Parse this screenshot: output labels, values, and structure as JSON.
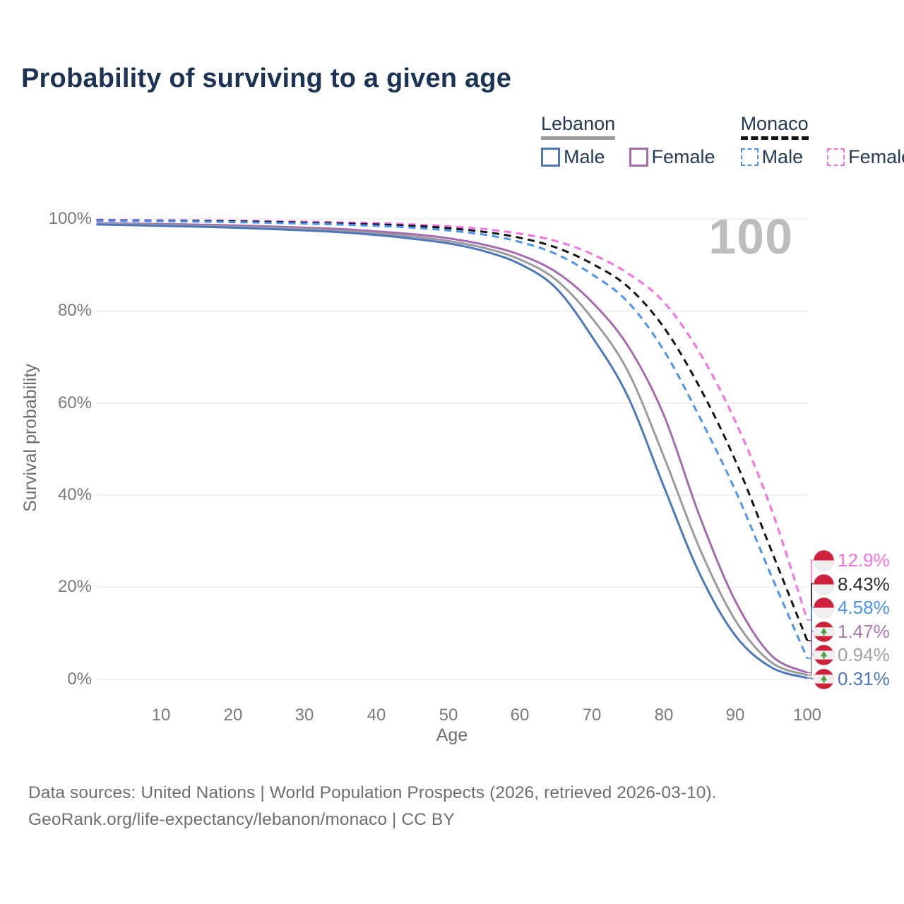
{
  "title": "Probability of surviving to a given age",
  "watermark": "100",
  "legend": {
    "groups": [
      {
        "label": "Lebanon",
        "line_style": "solid",
        "line_color": "#9b9b9b",
        "items": [
          {
            "label": "Male",
            "color": "#4a77bd",
            "dash": false
          },
          {
            "label": "Female",
            "color": "#a76ab0",
            "dash": false
          }
        ]
      },
      {
        "label": "Monaco",
        "line_style": "dashed",
        "line_color": "#141414",
        "items": [
          {
            "label": "Male",
            "color": "#4b93f5",
            "dash": true
          },
          {
            "label": "Female",
            "color": "#fa6fe3",
            "dash": true
          }
        ]
      }
    ]
  },
  "axes": {
    "y_title": "Survival probability",
    "x_title": "Age",
    "y_ticks": [
      "100%",
      "80%",
      "60%",
      "40%",
      "20%",
      "0%"
    ],
    "x_ticks": [
      "10",
      "20",
      "30",
      "40",
      "50",
      "60",
      "70",
      "80",
      "90",
      "100"
    ]
  },
  "chart_data": {
    "type": "line",
    "title": "Probability of surviving to a given age",
    "xlabel": "Age",
    "ylabel": "Survival probability",
    "xlim": [
      1,
      100
    ],
    "ylim": [
      0,
      100
    ],
    "y_unit": "%",
    "grid": "horizontal",
    "legend_position": "top-right",
    "current_age_indicator": 100,
    "series": [
      {
        "name": "Monaco Female",
        "country": "Monaco",
        "sex": "Female",
        "color": "#fa6fe3",
        "dash": true,
        "end_label": "12.9%",
        "points": [
          [
            1,
            99.8
          ],
          [
            10,
            99.7
          ],
          [
            20,
            99.6
          ],
          [
            30,
            99.4
          ],
          [
            40,
            99.1
          ],
          [
            45,
            98.8
          ],
          [
            50,
            98.4
          ],
          [
            55,
            97.8
          ],
          [
            60,
            96.8
          ],
          [
            65,
            95.2
          ],
          [
            70,
            92.4
          ],
          [
            75,
            88.2
          ],
          [
            80,
            82.0
          ],
          [
            85,
            71.0
          ],
          [
            90,
            56.0
          ],
          [
            95,
            37.0
          ],
          [
            100,
            12.9
          ]
        ]
      },
      {
        "name": "Monaco Both sexes",
        "country": "Monaco",
        "sex": "Both sexes",
        "color": "#141414",
        "dash": true,
        "end_label": "8.43%",
        "points": [
          [
            1,
            99.7
          ],
          [
            10,
            99.6
          ],
          [
            20,
            99.5
          ],
          [
            30,
            99.2
          ],
          [
            40,
            98.8
          ],
          [
            45,
            98.5
          ],
          [
            50,
            98.0
          ],
          [
            55,
            97.2
          ],
          [
            60,
            95.9
          ],
          [
            65,
            93.8
          ],
          [
            70,
            90.3
          ],
          [
            75,
            85.3
          ],
          [
            80,
            76.5
          ],
          [
            85,
            63.5
          ],
          [
            90,
            47.5
          ],
          [
            95,
            28.0
          ],
          [
            100,
            8.43
          ]
        ]
      },
      {
        "name": "Monaco Male",
        "country": "Monaco",
        "sex": "Male",
        "color": "#4b93f5",
        "dash": true,
        "end_label": "4.58%",
        "points": [
          [
            1,
            99.6
          ],
          [
            10,
            99.5
          ],
          [
            20,
            99.3
          ],
          [
            30,
            99.0
          ],
          [
            40,
            98.5
          ],
          [
            45,
            98.1
          ],
          [
            50,
            97.5
          ],
          [
            55,
            96.6
          ],
          [
            60,
            95.0
          ],
          [
            65,
            92.4
          ],
          [
            70,
            88.0
          ],
          [
            75,
            82.0
          ],
          [
            80,
            71.5
          ],
          [
            85,
            57.0
          ],
          [
            90,
            41.0
          ],
          [
            95,
            22.5
          ],
          [
            100,
            4.58
          ]
        ]
      },
      {
        "name": "Lebanon Female",
        "country": "Lebanon",
        "sex": "Female",
        "color": "#a76ab0",
        "dash": false,
        "end_label": "1.47%",
        "points": [
          [
            1,
            99.1
          ],
          [
            10,
            98.9
          ],
          [
            20,
            98.6
          ],
          [
            30,
            98.1
          ],
          [
            35,
            97.8
          ],
          [
            40,
            97.3
          ],
          [
            45,
            96.7
          ],
          [
            50,
            95.8
          ],
          [
            55,
            94.4
          ],
          [
            60,
            92.2
          ],
          [
            65,
            88.5
          ],
          [
            70,
            82.0
          ],
          [
            75,
            72.5
          ],
          [
            80,
            57.5
          ],
          [
            85,
            35.5
          ],
          [
            90,
            17.0
          ],
          [
            95,
            5.2
          ],
          [
            100,
            1.47
          ]
        ]
      },
      {
        "name": "Lebanon Both sexes",
        "country": "Lebanon",
        "sex": "Both sexes",
        "color": "#9b9b9b",
        "dash": false,
        "end_label": "0.94%",
        "points": [
          [
            1,
            99.0
          ],
          [
            10,
            98.7
          ],
          [
            20,
            98.3
          ],
          [
            30,
            97.8
          ],
          [
            35,
            97.4
          ],
          [
            40,
            96.9
          ],
          [
            45,
            96.2
          ],
          [
            50,
            95.2
          ],
          [
            55,
            93.7
          ],
          [
            60,
            91.2
          ],
          [
            65,
            86.8
          ],
          [
            70,
            78.5
          ],
          [
            75,
            67.0
          ],
          [
            80,
            48.5
          ],
          [
            85,
            28.5
          ],
          [
            90,
            12.8
          ],
          [
            95,
            3.7
          ],
          [
            100,
            0.94
          ]
        ]
      },
      {
        "name": "Lebanon Male",
        "country": "Lebanon",
        "sex": "Male",
        "color": "#4a77bd",
        "dash": false,
        "end_label": "0.31%",
        "points": [
          [
            1,
            98.8
          ],
          [
            10,
            98.5
          ],
          [
            20,
            98.1
          ],
          [
            30,
            97.5
          ],
          [
            35,
            97.1
          ],
          [
            40,
            96.5
          ],
          [
            45,
            95.7
          ],
          [
            50,
            94.7
          ],
          [
            55,
            93.0
          ],
          [
            60,
            90.2
          ],
          [
            65,
            85.0
          ],
          [
            70,
            74.5
          ],
          [
            75,
            61.5
          ],
          [
            80,
            42.0
          ],
          [
            85,
            23.0
          ],
          [
            90,
            9.5
          ],
          [
            95,
            2.6
          ],
          [
            100,
            0.31
          ]
        ]
      }
    ]
  },
  "end_labels": [
    {
      "value": "12.9%",
      "flag": "monaco",
      "color": "#fa6fe3"
    },
    {
      "value": "8.43%",
      "flag": "monaco",
      "color": "#2a2a2a"
    },
    {
      "value": "4.58%",
      "flag": "monaco",
      "color": "#4b93f5"
    },
    {
      "value": "1.47%",
      "flag": "lebanon",
      "color": "#ad77b5"
    },
    {
      "value": "0.94%",
      "flag": "lebanon",
      "color": "#a2a2a2"
    },
    {
      "value": "0.31%",
      "flag": "lebanon",
      "color": "#4a77bd"
    }
  ],
  "footer": {
    "line1": "Data sources: United Nations | World Population Prospects (2026, retrieved 2026-03-10).",
    "line2": "GeoRank.org/life-expectancy/lebanon/monaco | CC BY"
  }
}
